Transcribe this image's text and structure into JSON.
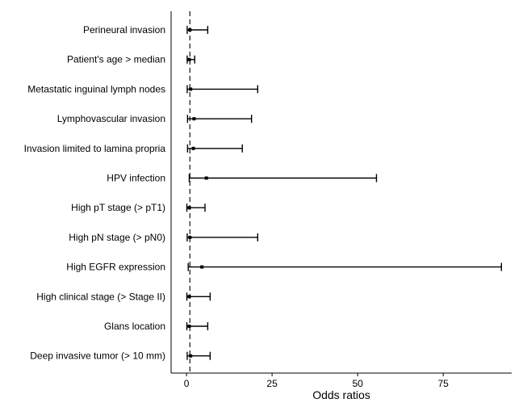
{
  "chart_data": {
    "type": "forest",
    "xlabel": "Odds ratios",
    "xlim": [
      -4.5,
      95
    ],
    "xticks": [
      0,
      25,
      50,
      75
    ],
    "reference_line": 1,
    "grid": false,
    "categories": [
      "Perineural invasion",
      "Patient's age > median",
      "Metastatic inguinal lymph nodes",
      "Lymphovascular invasion",
      "Invasion limited to lamina propria",
      "HPV infection",
      "High pT stage (> pT1)",
      "High pN stage (> pN0)",
      "High EGFR expression",
      "High clinical stage (> Stage II)",
      "Glans location",
      "Deep invasive tumor (> 10 mm)"
    ],
    "estimates": [
      1.0,
      0.8,
      1.2,
      2.2,
      2.0,
      5.8,
      0.8,
      1.0,
      4.5,
      0.8,
      0.8,
      1.2
    ],
    "lower": [
      0.2,
      0.2,
      0.2,
      0.3,
      0.3,
      0.8,
      0.1,
      0.2,
      0.5,
      0.1,
      0.1,
      0.2
    ],
    "upper": [
      6.2,
      2.4,
      20.8,
      19.0,
      16.3,
      55.5,
      5.4,
      20.8,
      92.0,
      6.9,
      6.2,
      6.9
    ],
    "colors": {
      "line": "#000000",
      "reference": "#333333",
      "axis": "#000000"
    }
  }
}
